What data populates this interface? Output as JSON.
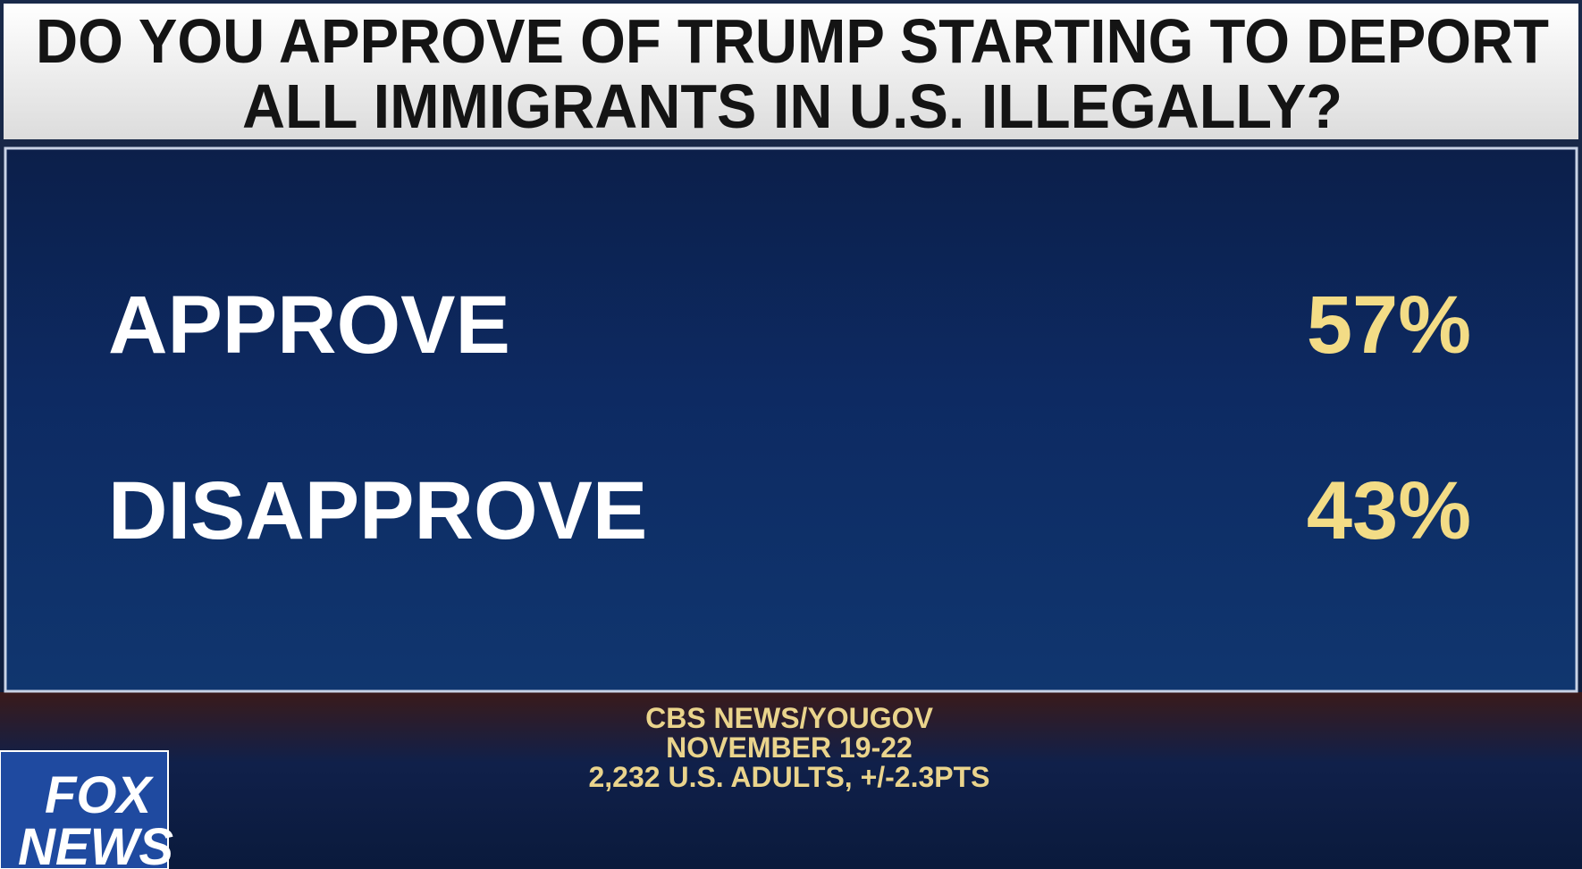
{
  "header": {
    "title_lines": [
      "DO YOU APPROVE OF TRUMP STARTING TO DEPORT",
      "ALL IMMIGRANTS IN U.S. ILLEGALLY?"
    ]
  },
  "results": {
    "rows": [
      [
        "APPROVE",
        "57%"
      ],
      [
        "DISAPPROVE",
        "43%"
      ]
    ]
  },
  "footer": {
    "lines": [
      "CBS NEWS/YOUGOV",
      "NOVEMBER 19-22",
      "2,232 U.S. ADULTS, +/-2.3PTS"
    ]
  },
  "logo": {
    "lines": [
      "FOX",
      "NEWS"
    ]
  }
}
